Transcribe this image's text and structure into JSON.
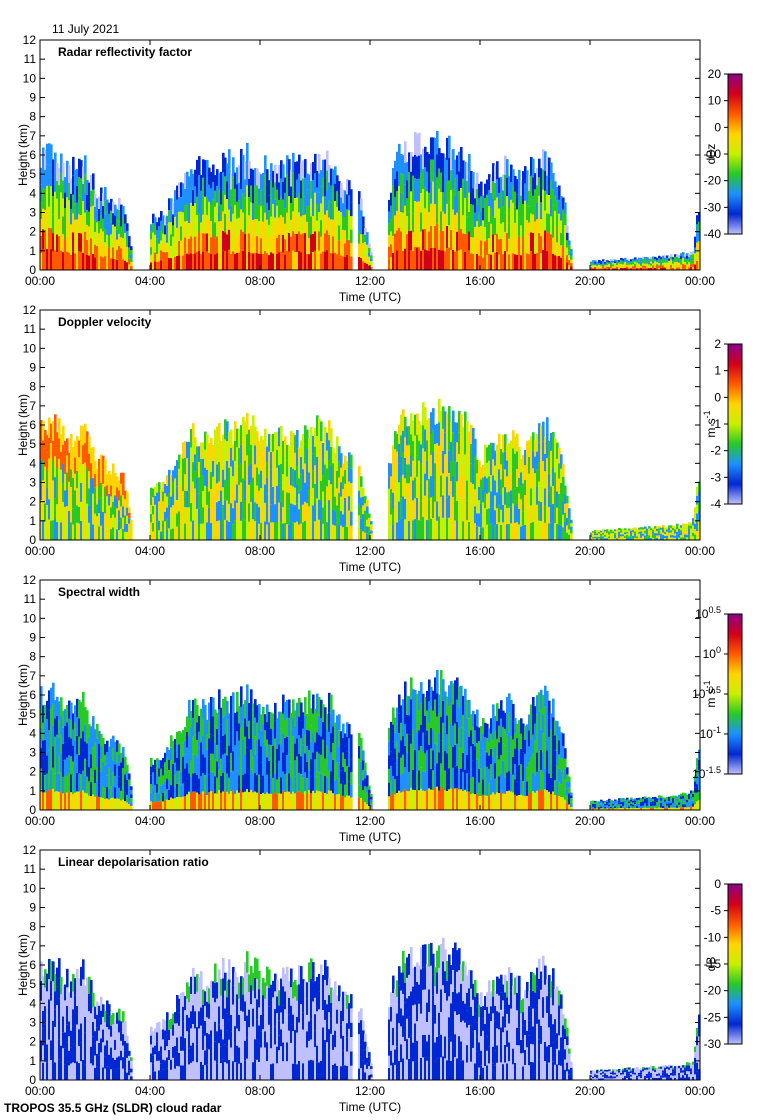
{
  "date": "11 July 2021",
  "footer": "TROPOS 35.5 GHz (SLDR) cloud radar",
  "colors": {
    "jet": [
      "#8b008b",
      "#d0001a",
      "#ff5a00",
      "#ffd400",
      "#c8f000",
      "#28c828",
      "#1e90ff",
      "#0028d2",
      "#c0c0ff"
    ]
  },
  "chart_data": [
    {
      "type": "heatmap",
      "title": "Radar reflectivity factor",
      "xlabel": "Time (UTC)",
      "ylabel": "Height (km)",
      "xticks": [
        "00:00",
        "04:00",
        "08:00",
        "12:00",
        "16:00",
        "20:00",
        "00:00"
      ],
      "yticks": [
        "0",
        "1",
        "2",
        "3",
        "4",
        "5",
        "6",
        "7",
        "8",
        "9",
        "10",
        "11",
        "12"
      ],
      "ylim": [
        0,
        12
      ],
      "colorbar": {
        "unit_text": "dBz",
        "ticks": [
          "20",
          "10",
          "0",
          "-10",
          "-20",
          "-30",
          "-40"
        ]
      }
    },
    {
      "type": "heatmap",
      "title": "Doppler velocity",
      "xlabel": "Time (UTC)",
      "ylabel": "Height (km)",
      "xticks": [
        "00:00",
        "04:00",
        "08:00",
        "12:00",
        "16:00",
        "20:00",
        "00:00"
      ],
      "yticks": [
        "0",
        "1",
        "2",
        "3",
        "4",
        "5",
        "6",
        "7",
        "8",
        "9",
        "10",
        "11",
        "12"
      ],
      "ylim": [
        0,
        12
      ],
      "colorbar": {
        "unit_text": "m s",
        "unit_exp": "-1",
        "ticks": [
          "2",
          "1",
          "0",
          "-1",
          "-2",
          "-3",
          "-4"
        ]
      }
    },
    {
      "type": "heatmap",
      "title": "Spectral width",
      "xlabel": "Time (UTC)",
      "ylabel": "Height (km)",
      "xticks": [
        "00:00",
        "04:00",
        "08:00",
        "12:00",
        "16:00",
        "20:00",
        "00:00"
      ],
      "yticks": [
        "0",
        "1",
        "2",
        "3",
        "4",
        "5",
        "6",
        "7",
        "8",
        "9",
        "10",
        "11",
        "12"
      ],
      "ylim": [
        0,
        12
      ],
      "colorbar": {
        "unit_text": "m s",
        "unit_exp": "-1",
        "ticks": [
          "10",
          "10",
          "10",
          "10",
          "10"
        ],
        "tick_exps": [
          "0.5",
          "0",
          "-0.5",
          "-1",
          "-1.5"
        ]
      }
    },
    {
      "type": "heatmap",
      "title": "Linear depolarisation ratio",
      "xlabel": "Time (UTC)",
      "ylabel": "Height (km)",
      "xticks": [
        "00:00",
        "04:00",
        "08:00",
        "12:00",
        "16:00",
        "20:00",
        "00:00"
      ],
      "yticks": [
        "0",
        "1",
        "2",
        "3",
        "4",
        "5",
        "6",
        "7",
        "8",
        "9",
        "10",
        "11",
        "12"
      ],
      "ylim": [
        0,
        12
      ],
      "colorbar": {
        "unit_text": "dB",
        "ticks": [
          "0",
          "-5",
          "-10",
          "-15",
          "-20",
          "-25",
          "-30"
        ]
      }
    }
  ],
  "cloud_top_profile_km": [
    [
      0.0,
      6.5
    ],
    [
      0.5,
      6.4
    ],
    [
      1.0,
      5.5
    ],
    [
      1.5,
      6.2
    ],
    [
      2.0,
      4.5
    ],
    [
      2.5,
      4.0
    ],
    [
      3.0,
      3.5
    ],
    [
      3.3,
      1.0
    ],
    [
      4.0,
      2.8
    ],
    [
      4.5,
      3.2
    ],
    [
      5.0,
      4.5
    ],
    [
      5.5,
      6.0
    ],
    [
      6.0,
      5.5
    ],
    [
      6.5,
      6.2
    ],
    [
      7.0,
      6.0
    ],
    [
      7.5,
      6.5
    ],
    [
      8.0,
      6.0
    ],
    [
      8.5,
      5.5
    ],
    [
      9.0,
      6.0
    ],
    [
      9.5,
      5.8
    ],
    [
      10.0,
      6.3
    ],
    [
      10.5,
      6.0
    ],
    [
      11.0,
      4.5
    ],
    [
      11.5,
      4.8
    ],
    [
      12.0,
      1.0
    ],
    [
      12.6,
      4.0
    ],
    [
      13.0,
      6.5
    ],
    [
      13.5,
      7.0
    ],
    [
      14.0,
      7.0
    ],
    [
      14.5,
      7.2
    ],
    [
      15.0,
      7.0
    ],
    [
      15.5,
      6.5
    ],
    [
      16.0,
      4.5
    ],
    [
      16.5,
      5.5
    ],
    [
      17.0,
      6.0
    ],
    [
      17.5,
      5.0
    ],
    [
      18.0,
      6.2
    ],
    [
      18.5,
      6.3
    ],
    [
      19.0,
      4.0
    ],
    [
      19.3,
      0.8
    ],
    [
      20.0,
      0.5
    ],
    [
      21.0,
      0.6
    ],
    [
      22.0,
      0.7
    ],
    [
      23.0,
      0.8
    ],
    [
      23.7,
      1.0
    ],
    [
      24.0,
      4.5
    ]
  ],
  "gaps_h": [
    [
      3.3,
      4.0
    ],
    [
      11.3,
      11.5
    ],
    [
      12.0,
      12.6
    ],
    [
      19.3,
      20.0
    ]
  ]
}
